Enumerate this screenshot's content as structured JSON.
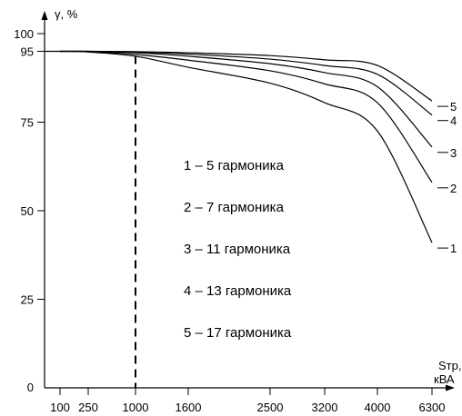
{
  "chart_data": {
    "type": "line",
    "ylabel": "γ, %",
    "xlabel_line1": "Sтр,",
    "xlabel_line2": "кВА",
    "x_ticks": [
      "100",
      "250",
      "1000",
      "1600",
      "2500",
      "3200",
      "4000",
      "6300"
    ],
    "y_ticks": [
      "0",
      "25",
      "50",
      "75",
      "95",
      "100"
    ],
    "y_tick_values": [
      0,
      25,
      50,
      75,
      95,
      100
    ],
    "ylim": [
      0,
      100
    ],
    "grid": false,
    "reference_line": {
      "x": "1000",
      "style": "dashed"
    },
    "series": [
      {
        "label": "1",
        "x": [
          "100",
          "250",
          "1000",
          "1600",
          "2500",
          "3200",
          "4000",
          "6300"
        ],
        "values": [
          95,
          94.8,
          93.6,
          90.5,
          86,
          80.5,
          72.5,
          41
        ]
      },
      {
        "label": "2",
        "x": [
          "100",
          "250",
          "1000",
          "1600",
          "2500",
          "3200",
          "4000",
          "6300"
        ],
        "values": [
          95,
          94.9,
          94.1,
          92.5,
          89.5,
          85.8,
          80.5,
          58
        ]
      },
      {
        "label": "3",
        "x": [
          "100",
          "250",
          "1000",
          "1600",
          "2500",
          "3200",
          "4000",
          "6300"
        ],
        "values": [
          95,
          95,
          94.6,
          93.6,
          91.5,
          89,
          85,
          68
        ]
      },
      {
        "label": "4",
        "x": [
          "100",
          "250",
          "1000",
          "1600",
          "2500",
          "3200",
          "4000",
          "6300"
        ],
        "values": [
          95,
          95,
          94.8,
          94.2,
          92.8,
          91,
          88.5,
          77
        ]
      },
      {
        "label": "5",
        "x": [
          "100",
          "250",
          "1000",
          "1600",
          "2500",
          "3200",
          "4000",
          "6300"
        ],
        "values": [
          95,
          95,
          94.9,
          94.6,
          93.8,
          92.6,
          91,
          81
        ]
      }
    ],
    "legend": [
      "1 – 5 гармоника",
      "2 – 7 гармоника",
      "3 – 11 гармоника",
      "4 – 13 гармоника",
      "5 – 17 гармоника"
    ]
  }
}
